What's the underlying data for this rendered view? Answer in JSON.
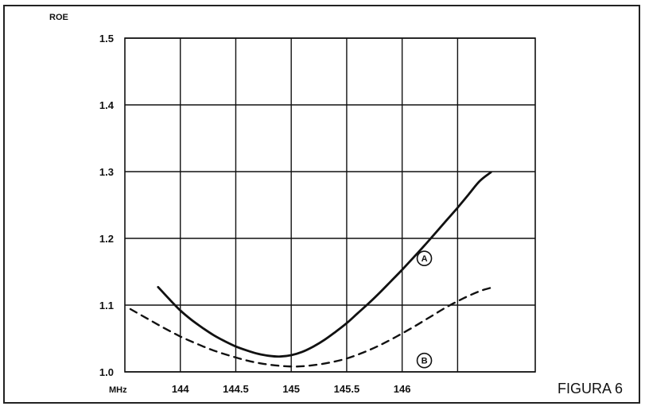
{
  "figure_caption": "FIGURA 6",
  "chart_data": {
    "type": "line",
    "ylabel": "ROE",
    "xlabel": "MHz",
    "xlim": [
      143.5,
      147.2
    ],
    "ylim": [
      1.0,
      1.5
    ],
    "x_ticks": [
      144,
      144.5,
      145,
      145.5,
      146
    ],
    "x_tick_labels": [
      "144",
      "144.5",
      "145",
      "145.5",
      "146"
    ],
    "y_ticks": [
      1.0,
      1.1,
      1.2,
      1.3,
      1.4,
      1.5
    ],
    "y_tick_labels": [
      "1.0",
      "1.1",
      "1.2",
      "1.3",
      "1.4",
      "1.5"
    ],
    "grid": true,
    "colors": {
      "ink": "#111111",
      "frame": "#222222"
    },
    "series": [
      {
        "name": "A",
        "style": "solid",
        "x": [
          143.8,
          143.9,
          144.0,
          144.1,
          144.2,
          144.3,
          144.4,
          144.5,
          144.6,
          144.7,
          144.8,
          144.9,
          145.0,
          145.1,
          145.2,
          145.3,
          145.4,
          145.5,
          145.6,
          145.7,
          145.8,
          145.9,
          146.0,
          146.1,
          146.2,
          146.3,
          146.4,
          146.5,
          146.6,
          146.7,
          146.8
        ],
        "y": [
          1.127,
          1.109,
          1.092,
          1.078,
          1.066,
          1.055,
          1.046,
          1.038,
          1.032,
          1.027,
          1.024,
          1.023,
          1.025,
          1.03,
          1.038,
          1.048,
          1.06,
          1.073,
          1.088,
          1.103,
          1.119,
          1.136,
          1.153,
          1.171,
          1.189,
          1.208,
          1.227,
          1.246,
          1.266,
          1.286,
          1.299
        ]
      },
      {
        "name": "B",
        "style": "dashed",
        "x": [
          143.55,
          143.7,
          143.85,
          144.0,
          144.15,
          144.3,
          144.45,
          144.6,
          144.75,
          144.9,
          145.05,
          145.2,
          145.35,
          145.5,
          145.65,
          145.8,
          145.95,
          146.1,
          146.25,
          146.4,
          146.55,
          146.7,
          146.8
        ],
        "y": [
          1.094,
          1.08,
          1.066,
          1.053,
          1.042,
          1.032,
          1.024,
          1.017,
          1.012,
          1.009,
          1.008,
          1.01,
          1.014,
          1.02,
          1.029,
          1.04,
          1.053,
          1.067,
          1.082,
          1.097,
          1.11,
          1.121,
          1.126
        ]
      }
    ],
    "annotations": [
      {
        "label": "A",
        "series": "A",
        "x": 146.2,
        "y": 1.17
      },
      {
        "label": "B",
        "series": "B",
        "x": 146.2,
        "y": 1.017
      }
    ]
  }
}
